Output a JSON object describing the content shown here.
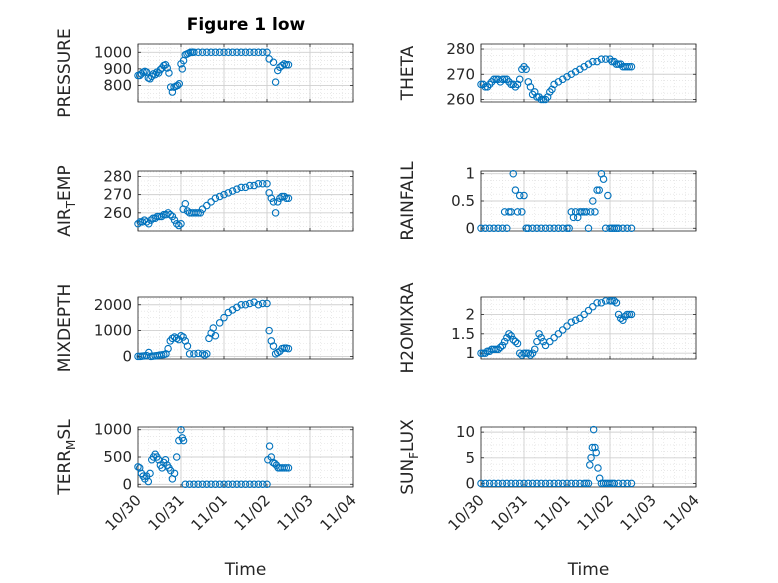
{
  "figure": {
    "title": "Figure 1 low"
  },
  "chart_data": [
    {
      "type": "scatter",
      "ylabel": "PRESSURE",
      "xlabel": "",
      "xlim": [
        0,
        5
      ],
      "ylim": [
        700,
        1050
      ],
      "yticks": [
        800,
        900,
        1000
      ],
      "xticks": [
        0,
        1,
        2,
        3,
        4,
        5
      ],
      "xticklabels": [
        "",
        "",
        "",
        "",
        "",
        ""
      ],
      "color": "#0072BD",
      "grid": true,
      "x": [
        0.0,
        0.04,
        0.08,
        0.12,
        0.16,
        0.2,
        0.24,
        0.28,
        0.32,
        0.36,
        0.4,
        0.44,
        0.48,
        0.52,
        0.56,
        0.6,
        0.64,
        0.68,
        0.72,
        0.76,
        0.8,
        0.84,
        0.88,
        0.92,
        0.96,
        1.0,
        1.03,
        1.06,
        1.1,
        1.14,
        1.18,
        1.22,
        1.26,
        1.3,
        1.4,
        1.5,
        1.6,
        1.7,
        1.8,
        1.9,
        2.0,
        2.1,
        2.2,
        2.3,
        2.4,
        2.5,
        2.6,
        2.7,
        2.8,
        2.9,
        3.0,
        3.05,
        3.15,
        3.2,
        3.25,
        3.3,
        3.35,
        3.4,
        3.45,
        3.5
      ],
      "y": [
        860,
        860,
        870,
        880,
        885,
        880,
        845,
        840,
        855,
        870,
        865,
        880,
        875,
        895,
        905,
        920,
        925,
        905,
        875,
        790,
        760,
        790,
        795,
        800,
        810,
        930,
        900,
        950,
        985,
        990,
        995,
        1000,
        1000,
        1000,
        1000,
        1000,
        1000,
        1000,
        1000,
        1000,
        1000,
        1000,
        1000,
        1000,
        1000,
        1000,
        1000,
        1000,
        1000,
        1000,
        1000,
        960,
        940,
        820,
        890,
        910,
        920,
        930,
        925,
        925
      ]
    },
    {
      "type": "scatter",
      "ylabel": "THETA",
      "xlabel": "",
      "xlim": [
        0,
        5
      ],
      "ylim": [
        259,
        282
      ],
      "yticks": [
        260,
        270,
        280
      ],
      "xticks": [
        0,
        1,
        2,
        3,
        4,
        5
      ],
      "xticklabels": [
        "",
        "",
        "",
        "",
        "",
        ""
      ],
      "color": "#0072BD",
      "grid": true,
      "x": [
        0.0,
        0.05,
        0.1,
        0.15,
        0.2,
        0.25,
        0.3,
        0.35,
        0.4,
        0.45,
        0.5,
        0.55,
        0.6,
        0.65,
        0.7,
        0.75,
        0.8,
        0.85,
        0.9,
        0.95,
        1.0,
        1.05,
        1.1,
        1.15,
        1.2,
        1.25,
        1.3,
        1.35,
        1.4,
        1.45,
        1.5,
        1.55,
        1.6,
        1.65,
        1.7,
        1.8,
        1.9,
        2.0,
        2.1,
        2.2,
        2.3,
        2.4,
        2.5,
        2.6,
        2.7,
        2.8,
        2.9,
        3.0,
        3.05,
        3.1,
        3.15,
        3.2,
        3.25,
        3.3,
        3.35,
        3.4,
        3.45,
        3.5
      ],
      "y": [
        266,
        266,
        265,
        265,
        266,
        267,
        268,
        268,
        268,
        267,
        268,
        268,
        268,
        267,
        266,
        266,
        265,
        266,
        268,
        272,
        273,
        272,
        267,
        265,
        262,
        263,
        261,
        261,
        260,
        260,
        260,
        261,
        263,
        264,
        266,
        267,
        268,
        269,
        270,
        271,
        272,
        273,
        274,
        275,
        275,
        276,
        276,
        276,
        275,
        275,
        274,
        274,
        274,
        273,
        273,
        273,
        273,
        273
      ]
    },
    {
      "type": "scatter",
      "ylabel": "AIR_TEMP",
      "xlabel": "",
      "xlim": [
        0,
        5
      ],
      "ylim": [
        250,
        283
      ],
      "yticks": [
        260,
        270,
        280
      ],
      "xticks": [
        0,
        1,
        2,
        3,
        4,
        5
      ],
      "xticklabels": [
        "",
        "",
        "",
        "",
        "",
        ""
      ],
      "color": "#0072BD",
      "grid": true,
      "x": [
        0.0,
        0.05,
        0.1,
        0.15,
        0.2,
        0.25,
        0.3,
        0.35,
        0.4,
        0.45,
        0.5,
        0.55,
        0.6,
        0.65,
        0.7,
        0.75,
        0.8,
        0.85,
        0.9,
        0.95,
        1.0,
        1.05,
        1.1,
        1.15,
        1.2,
        1.25,
        1.3,
        1.35,
        1.4,
        1.45,
        1.5,
        1.6,
        1.7,
        1.8,
        1.9,
        2.0,
        2.1,
        2.2,
        2.3,
        2.4,
        2.5,
        2.6,
        2.7,
        2.8,
        2.9,
        3.0,
        3.05,
        3.1,
        3.15,
        3.2,
        3.25,
        3.3,
        3.35,
        3.4,
        3.45,
        3.5
      ],
      "y": [
        254,
        255,
        255,
        256,
        255,
        254,
        256,
        257,
        257,
        258,
        258,
        258,
        259,
        259,
        260,
        259,
        258,
        256,
        254,
        253,
        254,
        262,
        265,
        261,
        260,
        260,
        260,
        260,
        260,
        260,
        262,
        264,
        266,
        268,
        269,
        270,
        271,
        272,
        273,
        274,
        274,
        275,
        275,
        276,
        276,
        276,
        271,
        268,
        266,
        260,
        266,
        268,
        269,
        269,
        268,
        268
      ]
    },
    {
      "type": "scatter",
      "ylabel": "MIXDEPTH",
      "xlabel": "",
      "xlim": [
        0,
        5
      ],
      "ylim": [
        -100,
        2300
      ],
      "yticks": [
        0,
        1000,
        2000
      ],
      "xticks": [
        0,
        1,
        2,
        3,
        4,
        5
      ],
      "xticklabels": [
        "",
        "",
        "",
        "",
        "",
        ""
      ],
      "color": "#0072BD",
      "grid": true,
      "x": [
        0.0,
        0.05,
        0.1,
        0.15,
        0.2,
        0.25,
        0.3,
        0.35,
        0.4,
        0.45,
        0.5,
        0.55,
        0.6,
        0.65,
        0.7,
        0.75,
        0.8,
        0.85,
        0.9,
        0.95,
        1.0,
        1.05,
        1.1,
        1.15,
        1.2,
        1.3,
        1.4,
        1.5,
        1.55,
        1.6,
        1.65,
        1.7,
        1.75,
        1.8,
        1.9,
        2.0,
        2.1,
        2.2,
        2.3,
        2.4,
        2.5,
        2.6,
        2.7,
        2.8,
        2.9,
        3.0,
        3.05,
        3.1,
        3.15,
        3.2,
        3.25,
        3.3,
        3.35,
        3.4,
        3.45,
        3.5
      ],
      "y": [
        0,
        0,
        10,
        20,
        30,
        150,
        0,
        10,
        20,
        30,
        50,
        60,
        70,
        100,
        300,
        600,
        700,
        750,
        700,
        650,
        800,
        750,
        600,
        400,
        100,
        100,
        120,
        100,
        50,
        100,
        700,
        900,
        1100,
        800,
        1300,
        1500,
        1700,
        1800,
        1900,
        2000,
        2000,
        2050,
        2100,
        2000,
        2050,
        2050,
        1000,
        600,
        400,
        100,
        150,
        200,
        300,
        320,
        320,
        300
      ]
    },
    {
      "type": "scatter",
      "ylabel": "H2OMIXRA",
      "xlabel": "",
      "xlim": [
        0,
        5
      ],
      "ylim": [
        0.85,
        2.45
      ],
      "yticks": [
        1,
        1.5,
        2
      ],
      "xticks": [
        0,
        1,
        2,
        3,
        4,
        5
      ],
      "xticklabels": [
        "",
        "",
        "",
        "",
        "",
        ""
      ],
      "color": "#0072BD",
      "grid": true,
      "x": [
        0.0,
        0.05,
        0.1,
        0.15,
        0.2,
        0.25,
        0.3,
        0.35,
        0.4,
        0.45,
        0.5,
        0.55,
        0.6,
        0.65,
        0.7,
        0.75,
        0.8,
        0.85,
        0.9,
        0.95,
        1.0,
        1.05,
        1.1,
        1.15,
        1.2,
        1.25,
        1.3,
        1.35,
        1.4,
        1.45,
        1.5,
        1.6,
        1.7,
        1.8,
        1.9,
        2.0,
        2.1,
        2.2,
        2.3,
        2.4,
        2.5,
        2.6,
        2.7,
        2.8,
        2.9,
        3.0,
        3.05,
        3.1,
        3.15,
        3.2,
        3.25,
        3.3,
        3.35,
        3.4,
        3.45,
        3.5
      ],
      "y": [
        1.0,
        1.0,
        1.0,
        1.05,
        1.05,
        1.1,
        1.1,
        1.1,
        1.1,
        1.15,
        1.2,
        1.3,
        1.4,
        1.5,
        1.45,
        1.35,
        1.3,
        1.25,
        1.0,
        0.95,
        1.0,
        1.0,
        1.0,
        0.95,
        1.0,
        1.1,
        1.3,
        1.5,
        1.4,
        1.3,
        1.2,
        1.3,
        1.4,
        1.5,
        1.6,
        1.7,
        1.8,
        1.85,
        1.9,
        2.0,
        2.1,
        2.2,
        2.3,
        2.3,
        2.35,
        2.35,
        2.35,
        2.35,
        2.3,
        2.0,
        1.9,
        1.85,
        1.95,
        2.0,
        2.0,
        2.0
      ]
    },
    {
      "type": "scatter",
      "ylabel": "RAINFALL",
      "xlabel": "",
      "xlim": [
        0,
        5
      ],
      "ylim": [
        -0.05,
        1.05
      ],
      "yticks": [
        0,
        0.5,
        1
      ],
      "xticks": [
        0,
        1,
        2,
        3,
        4,
        5
      ],
      "xticklabels": [
        "",
        "",
        "",
        "",
        "",
        ""
      ],
      "color": "#0072BD",
      "grid": true,
      "x": [
        0.0,
        0.1,
        0.2,
        0.3,
        0.4,
        0.5,
        0.55,
        0.6,
        0.65,
        0.7,
        0.75,
        0.8,
        0.85,
        0.9,
        0.95,
        1.0,
        1.05,
        1.1,
        1.2,
        1.3,
        1.4,
        1.5,
        1.6,
        1.7,
        1.8,
        1.9,
        2.0,
        2.05,
        2.1,
        2.15,
        2.2,
        2.25,
        2.3,
        2.35,
        2.4,
        2.45,
        2.5,
        2.55,
        2.6,
        2.65,
        2.7,
        2.75,
        2.8,
        2.85,
        2.9,
        2.95,
        3.0,
        3.05,
        3.1,
        3.15,
        3.2,
        3.3,
        3.4,
        3.5
      ],
      "y": [
        0,
        0,
        0,
        0,
        0,
        0,
        0.3,
        0,
        0.3,
        0.3,
        1.0,
        0.7,
        0.3,
        0.6,
        0.3,
        0.6,
        0,
        0,
        0,
        0,
        0,
        0,
        0,
        0,
        0,
        0,
        0,
        0,
        0.3,
        0.2,
        0.3,
        0.2,
        0.3,
        0.3,
        0.3,
        0.3,
        0,
        0.3,
        0.5,
        0.3,
        0.7,
        0.7,
        1.0,
        0.9,
        0,
        0.6,
        0,
        0,
        0,
        0,
        0,
        0,
        0,
        0
      ]
    },
    {
      "type": "scatter",
      "ylabel": "TERR_MSL",
      "xlabel": "Time",
      "xlim": [
        0,
        5
      ],
      "ylim": [
        -50,
        1050
      ],
      "yticks": [
        0,
        500,
        1000
      ],
      "xticks": [
        0,
        1,
        2,
        3,
        4,
        5
      ],
      "xticklabels": [
        "10/30",
        "10/31",
        "11/01",
        "11/02",
        "11/03",
        "11/04"
      ],
      "color": "#0072BD",
      "grid": true,
      "x": [
        0.0,
        0.04,
        0.08,
        0.12,
        0.16,
        0.2,
        0.24,
        0.28,
        0.32,
        0.36,
        0.4,
        0.44,
        0.48,
        0.52,
        0.56,
        0.6,
        0.64,
        0.68,
        0.72,
        0.76,
        0.8,
        0.85,
        0.9,
        0.95,
        1.0,
        1.03,
        1.06,
        1.1,
        1.2,
        1.3,
        1.4,
        1.5,
        1.6,
        1.7,
        1.8,
        1.9,
        2.0,
        2.1,
        2.2,
        2.3,
        2.4,
        2.5,
        2.6,
        2.7,
        2.8,
        2.9,
        3.0,
        3.02,
        3.06,
        3.1,
        3.14,
        3.18,
        3.22,
        3.26,
        3.3,
        3.35,
        3.4,
        3.45,
        3.5
      ],
      "y": [
        320,
        300,
        200,
        150,
        100,
        150,
        50,
        200,
        450,
        500,
        550,
        500,
        450,
        350,
        300,
        400,
        450,
        350,
        300,
        250,
        100,
        200,
        500,
        800,
        1000,
        850,
        800,
        0,
        0,
        0,
        0,
        0,
        0,
        0,
        0,
        0,
        0,
        0,
        0,
        0,
        0,
        0,
        0,
        0,
        0,
        0,
        0,
        450,
        700,
        500,
        400,
        380,
        350,
        300,
        300,
        300,
        300,
        300,
        300
      ]
    },
    {
      "type": "scatter",
      "ylabel": "SUN_FLUX",
      "xlabel": "Time",
      "xlim": [
        0,
        5
      ],
      "ylim": [
        -0.7,
        11
      ],
      "yticks": [
        0,
        5,
        10
      ],
      "xticks": [
        0,
        1,
        2,
        3,
        4,
        5
      ],
      "xticklabels": [
        "10/30",
        "10/31",
        "11/01",
        "11/02",
        "11/03",
        "11/04"
      ],
      "color": "#0072BD",
      "grid": true,
      "x": [
        0.0,
        0.1,
        0.2,
        0.3,
        0.4,
        0.5,
        0.6,
        0.7,
        0.8,
        0.9,
        1.0,
        1.1,
        1.2,
        1.3,
        1.4,
        1.5,
        1.6,
        1.7,
        1.8,
        1.9,
        2.0,
        2.1,
        2.2,
        2.3,
        2.4,
        2.45,
        2.5,
        2.53,
        2.56,
        2.59,
        2.62,
        2.65,
        2.68,
        2.72,
        2.76,
        2.8,
        2.85,
        2.9,
        2.95,
        3.0,
        3.05,
        3.1,
        3.2,
        3.3,
        3.4,
        3.5
      ],
      "y": [
        0,
        0,
        0,
        0,
        0,
        0,
        0,
        0,
        0,
        0,
        0,
        0,
        0,
        0,
        0,
        0,
        0,
        0,
        0,
        0,
        0,
        0,
        0,
        0,
        0,
        0,
        0,
        3.6,
        5,
        7,
        10.5,
        7,
        6,
        3,
        1,
        0,
        0,
        0,
        0,
        0,
        0,
        0,
        0,
        0,
        0,
        0
      ]
    }
  ]
}
